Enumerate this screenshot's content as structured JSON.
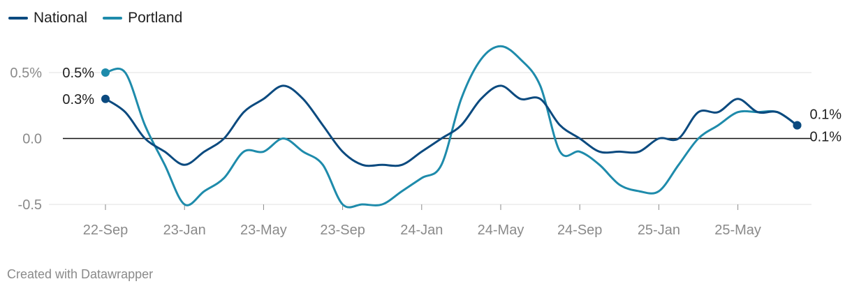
{
  "chart_data": {
    "type": "line",
    "credit": "Created with Datawrapper",
    "x_ticks": [
      "22-Sep",
      "23-Jan",
      "23-May",
      "23-Sep",
      "24-Jan",
      "24-May",
      "24-Sep",
      "25-Jan",
      "25-May"
    ],
    "y_ticks": [
      {
        "value": 0.5,
        "label": "0.5%"
      },
      {
        "value": 0.0,
        "label": "0.0"
      },
      {
        "value": -0.5,
        "label": "-0.5"
      }
    ],
    "ylim": [
      -0.5,
      0.5
    ],
    "zero_line": true,
    "grid": true,
    "legend": "top-left",
    "series": [
      {
        "name": "National",
        "color": "#0b4a7f",
        "start_label": "0.3%",
        "end_label": "0.1%",
        "x": [
          "2022-09",
          "2022-10",
          "2022-11",
          "2022-12",
          "2023-01",
          "2023-02",
          "2023-03",
          "2023-04",
          "2023-05",
          "2023-06",
          "2023-07",
          "2023-08",
          "2023-09",
          "2023-10",
          "2023-11",
          "2023-12",
          "2024-01",
          "2024-02",
          "2024-03",
          "2024-04",
          "2024-05",
          "2024-06",
          "2024-07",
          "2024-08",
          "2024-09",
          "2024-10",
          "2024-11",
          "2024-12",
          "2025-01",
          "2025-02",
          "2025-03",
          "2025-04",
          "2025-05",
          "2025-06",
          "2025-07",
          "2025-08"
        ],
        "values": [
          0.3,
          0.2,
          0.0,
          -0.1,
          -0.2,
          -0.1,
          0.0,
          0.2,
          0.3,
          0.4,
          0.3,
          0.1,
          -0.1,
          -0.2,
          -0.2,
          -0.2,
          -0.1,
          0.0,
          0.1,
          0.3,
          0.4,
          0.3,
          0.3,
          0.1,
          0.0,
          -0.1,
          -0.1,
          -0.1,
          0.0,
          0.0,
          0.2,
          0.2,
          0.3,
          0.2,
          0.2,
          0.1
        ]
      },
      {
        "name": "Portland",
        "color": "#1e8bab",
        "start_label": "0.5%",
        "end_label": "0.1%",
        "x": [
          "2022-09",
          "2022-10",
          "2022-11",
          "2022-12",
          "2023-01",
          "2023-02",
          "2023-03",
          "2023-04",
          "2023-05",
          "2023-06",
          "2023-07",
          "2023-08",
          "2023-09",
          "2023-10",
          "2023-11",
          "2023-12",
          "2024-01",
          "2024-02",
          "2024-03",
          "2024-04",
          "2024-05",
          "2024-06",
          "2024-07",
          "2024-08",
          "2024-09",
          "2024-10",
          "2024-11",
          "2024-12",
          "2025-01",
          "2025-02",
          "2025-03",
          "2025-04",
          "2025-05",
          "2025-06",
          "2025-07",
          "2025-08"
        ],
        "values": [
          0.5,
          0.5,
          0.1,
          -0.2,
          -0.5,
          -0.4,
          -0.3,
          -0.1,
          -0.1,
          0.0,
          -0.1,
          -0.2,
          -0.5,
          -0.5,
          -0.5,
          -0.4,
          -0.3,
          -0.2,
          0.3,
          0.6,
          0.7,
          0.6,
          0.4,
          -0.1,
          -0.1,
          -0.2,
          -0.35,
          -0.4,
          -0.4,
          -0.2,
          0.0,
          0.1,
          0.2,
          0.2,
          0.2,
          0.1
        ]
      }
    ]
  }
}
